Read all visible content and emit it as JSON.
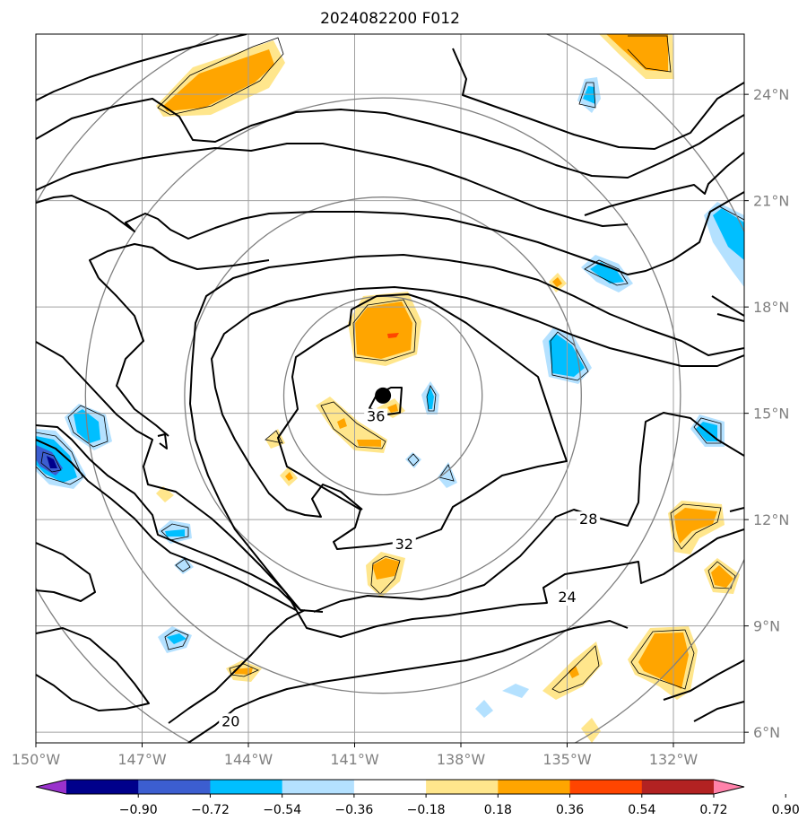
{
  "title": "2024082200 F012",
  "map": {
    "extent": {
      "lon": [
        -150,
        -130
      ],
      "lat": [
        5.7,
        25.7
      ]
    },
    "lon_ticks": [
      {
        "value": -150,
        "label": "150°W"
      },
      {
        "value": -147,
        "label": "147°W"
      },
      {
        "value": -144,
        "label": "144°W"
      },
      {
        "value": -141,
        "label": "141°W"
      },
      {
        "value": -138,
        "label": "138°W"
      },
      {
        "value": -135,
        "label": "135°W"
      },
      {
        "value": -132,
        "label": "132°W"
      }
    ],
    "lat_ticks": [
      {
        "value": 6,
        "label": "6°N"
      },
      {
        "value": 9,
        "label": "9°N"
      },
      {
        "value": 12,
        "label": "12°N"
      },
      {
        "value": 15,
        "label": "15°N"
      },
      {
        "value": 18,
        "label": "18°N"
      },
      {
        "value": 21,
        "label": "21°N"
      },
      {
        "value": 24,
        "label": "24°N"
      }
    ],
    "storm_center": {
      "lon": -140.2,
      "lat": 15.5
    },
    "range_rings_deg": [
      2.8,
      5.6,
      8.4,
      11.2
    ],
    "contour_labels": [
      {
        "text": "36",
        "lon": -140.4,
        "lat": 14.8
      },
      {
        "text": "32",
        "lon": -139.6,
        "lat": 11.2
      },
      {
        "text": "28",
        "lon": -134.4,
        "lat": 11.9
      },
      {
        "text": "24",
        "lon": -135.0,
        "lat": 9.7
      },
      {
        "text": "20",
        "lon": -144.5,
        "lat": 6.2
      }
    ],
    "line_color": "#000000",
    "ring_color": "#808080",
    "grid_color": "#a0a0a0"
  },
  "colorbar": {
    "ticks": [
      "−0.90",
      "−0.72",
      "−0.54",
      "−0.36",
      "−0.18",
      "0.18",
      "0.36",
      "0.54",
      "0.72",
      "0.90"
    ],
    "colors": [
      "#9932cc",
      "#00008b",
      "#3c5ed0",
      "#00bfff",
      "#b4e1ff",
      "#ffffff",
      "#ffe68c",
      "#ffa500",
      "#ff4500",
      "#b22222",
      "#ff82aa"
    ]
  }
}
